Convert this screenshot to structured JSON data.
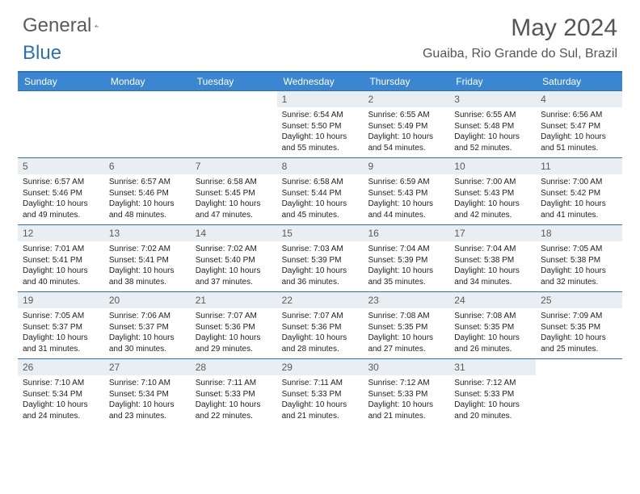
{
  "brand": {
    "general": "General",
    "blue": "Blue"
  },
  "title": "May 2024",
  "location": "Guaiba, Rio Grande do Sul, Brazil",
  "colors": {
    "header_bar": "#3a86d0",
    "daynum_bg": "#e9eef2",
    "rule": "#2d6fb8",
    "text": "#222222",
    "title_text": "#555555"
  },
  "dow": [
    "Sunday",
    "Monday",
    "Tuesday",
    "Wednesday",
    "Thursday",
    "Friday",
    "Saturday"
  ],
  "weeks": [
    [
      {
        "n": "",
        "sr": "",
        "ss": "",
        "d1": "",
        "d2": ""
      },
      {
        "n": "",
        "sr": "",
        "ss": "",
        "d1": "",
        "d2": ""
      },
      {
        "n": "",
        "sr": "",
        "ss": "",
        "d1": "",
        "d2": ""
      },
      {
        "n": "1",
        "sr": "Sunrise: 6:54 AM",
        "ss": "Sunset: 5:50 PM",
        "d1": "Daylight: 10 hours",
        "d2": "and 55 minutes."
      },
      {
        "n": "2",
        "sr": "Sunrise: 6:55 AM",
        "ss": "Sunset: 5:49 PM",
        "d1": "Daylight: 10 hours",
        "d2": "and 54 minutes."
      },
      {
        "n": "3",
        "sr": "Sunrise: 6:55 AM",
        "ss": "Sunset: 5:48 PM",
        "d1": "Daylight: 10 hours",
        "d2": "and 52 minutes."
      },
      {
        "n": "4",
        "sr": "Sunrise: 6:56 AM",
        "ss": "Sunset: 5:47 PM",
        "d1": "Daylight: 10 hours",
        "d2": "and 51 minutes."
      }
    ],
    [
      {
        "n": "5",
        "sr": "Sunrise: 6:57 AM",
        "ss": "Sunset: 5:46 PM",
        "d1": "Daylight: 10 hours",
        "d2": "and 49 minutes."
      },
      {
        "n": "6",
        "sr": "Sunrise: 6:57 AM",
        "ss": "Sunset: 5:46 PM",
        "d1": "Daylight: 10 hours",
        "d2": "and 48 minutes."
      },
      {
        "n": "7",
        "sr": "Sunrise: 6:58 AM",
        "ss": "Sunset: 5:45 PM",
        "d1": "Daylight: 10 hours",
        "d2": "and 47 minutes."
      },
      {
        "n": "8",
        "sr": "Sunrise: 6:58 AM",
        "ss": "Sunset: 5:44 PM",
        "d1": "Daylight: 10 hours",
        "d2": "and 45 minutes."
      },
      {
        "n": "9",
        "sr": "Sunrise: 6:59 AM",
        "ss": "Sunset: 5:43 PM",
        "d1": "Daylight: 10 hours",
        "d2": "and 44 minutes."
      },
      {
        "n": "10",
        "sr": "Sunrise: 7:00 AM",
        "ss": "Sunset: 5:43 PM",
        "d1": "Daylight: 10 hours",
        "d2": "and 42 minutes."
      },
      {
        "n": "11",
        "sr": "Sunrise: 7:00 AM",
        "ss": "Sunset: 5:42 PM",
        "d1": "Daylight: 10 hours",
        "d2": "and 41 minutes."
      }
    ],
    [
      {
        "n": "12",
        "sr": "Sunrise: 7:01 AM",
        "ss": "Sunset: 5:41 PM",
        "d1": "Daylight: 10 hours",
        "d2": "and 40 minutes."
      },
      {
        "n": "13",
        "sr": "Sunrise: 7:02 AM",
        "ss": "Sunset: 5:41 PM",
        "d1": "Daylight: 10 hours",
        "d2": "and 38 minutes."
      },
      {
        "n": "14",
        "sr": "Sunrise: 7:02 AM",
        "ss": "Sunset: 5:40 PM",
        "d1": "Daylight: 10 hours",
        "d2": "and 37 minutes."
      },
      {
        "n": "15",
        "sr": "Sunrise: 7:03 AM",
        "ss": "Sunset: 5:39 PM",
        "d1": "Daylight: 10 hours",
        "d2": "and 36 minutes."
      },
      {
        "n": "16",
        "sr": "Sunrise: 7:04 AM",
        "ss": "Sunset: 5:39 PM",
        "d1": "Daylight: 10 hours",
        "d2": "and 35 minutes."
      },
      {
        "n": "17",
        "sr": "Sunrise: 7:04 AM",
        "ss": "Sunset: 5:38 PM",
        "d1": "Daylight: 10 hours",
        "d2": "and 34 minutes."
      },
      {
        "n": "18",
        "sr": "Sunrise: 7:05 AM",
        "ss": "Sunset: 5:38 PM",
        "d1": "Daylight: 10 hours",
        "d2": "and 32 minutes."
      }
    ],
    [
      {
        "n": "19",
        "sr": "Sunrise: 7:05 AM",
        "ss": "Sunset: 5:37 PM",
        "d1": "Daylight: 10 hours",
        "d2": "and 31 minutes."
      },
      {
        "n": "20",
        "sr": "Sunrise: 7:06 AM",
        "ss": "Sunset: 5:37 PM",
        "d1": "Daylight: 10 hours",
        "d2": "and 30 minutes."
      },
      {
        "n": "21",
        "sr": "Sunrise: 7:07 AM",
        "ss": "Sunset: 5:36 PM",
        "d1": "Daylight: 10 hours",
        "d2": "and 29 minutes."
      },
      {
        "n": "22",
        "sr": "Sunrise: 7:07 AM",
        "ss": "Sunset: 5:36 PM",
        "d1": "Daylight: 10 hours",
        "d2": "and 28 minutes."
      },
      {
        "n": "23",
        "sr": "Sunrise: 7:08 AM",
        "ss": "Sunset: 5:35 PM",
        "d1": "Daylight: 10 hours",
        "d2": "and 27 minutes."
      },
      {
        "n": "24",
        "sr": "Sunrise: 7:08 AM",
        "ss": "Sunset: 5:35 PM",
        "d1": "Daylight: 10 hours",
        "d2": "and 26 minutes."
      },
      {
        "n": "25",
        "sr": "Sunrise: 7:09 AM",
        "ss": "Sunset: 5:35 PM",
        "d1": "Daylight: 10 hours",
        "d2": "and 25 minutes."
      }
    ],
    [
      {
        "n": "26",
        "sr": "Sunrise: 7:10 AM",
        "ss": "Sunset: 5:34 PM",
        "d1": "Daylight: 10 hours",
        "d2": "and 24 minutes."
      },
      {
        "n": "27",
        "sr": "Sunrise: 7:10 AM",
        "ss": "Sunset: 5:34 PM",
        "d1": "Daylight: 10 hours",
        "d2": "and 23 minutes."
      },
      {
        "n": "28",
        "sr": "Sunrise: 7:11 AM",
        "ss": "Sunset: 5:33 PM",
        "d1": "Daylight: 10 hours",
        "d2": "and 22 minutes."
      },
      {
        "n": "29",
        "sr": "Sunrise: 7:11 AM",
        "ss": "Sunset: 5:33 PM",
        "d1": "Daylight: 10 hours",
        "d2": "and 21 minutes."
      },
      {
        "n": "30",
        "sr": "Sunrise: 7:12 AM",
        "ss": "Sunset: 5:33 PM",
        "d1": "Daylight: 10 hours",
        "d2": "and 21 minutes."
      },
      {
        "n": "31",
        "sr": "Sunrise: 7:12 AM",
        "ss": "Sunset: 5:33 PM",
        "d1": "Daylight: 10 hours",
        "d2": "and 20 minutes."
      },
      {
        "n": "",
        "sr": "",
        "ss": "",
        "d1": "",
        "d2": ""
      }
    ]
  ]
}
